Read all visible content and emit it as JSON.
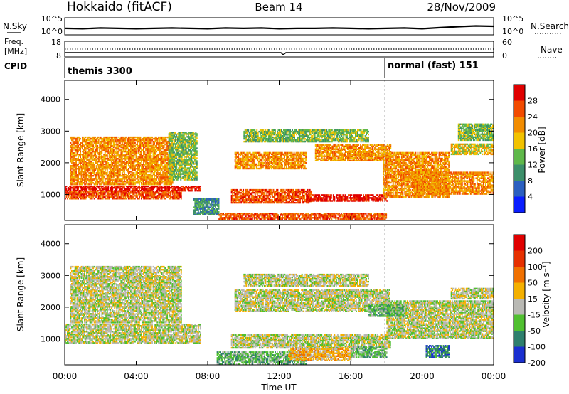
{
  "header": {
    "station_mode": "Hokkaido (fitACF)",
    "beam": "Beam 14",
    "date": "28/Nov/2009"
  },
  "top_panel": {
    "left_label": "N.Sky",
    "left_ticks": [
      "10^5",
      "10^0"
    ],
    "right_label": "N.Search",
    "right_ticks": [
      "10^5",
      "10^0"
    ]
  },
  "freq_panel": {
    "left_label": "Freq.",
    "left_unit": "[MHz]",
    "left_ticks": [
      "18",
      "8"
    ],
    "right_label": "Nave",
    "right_ticks": [
      "60",
      "0"
    ]
  },
  "cpid_panel": {
    "label": "CPID",
    "programs": [
      {
        "name": "themis 3300",
        "start_hour": 0
      },
      {
        "name": "normal (fast) 151",
        "start_hour": 18.0
      }
    ]
  },
  "chart_data": [
    {
      "type": "heatmap",
      "name": "power",
      "ylabel": "Slant Range [km]",
      "xlim": [
        0,
        24
      ],
      "ylim": [
        180,
        4600
      ],
      "yticks": [
        1000,
        2000,
        3000,
        4000
      ],
      "colorbar": {
        "label": "Power [dB]",
        "ticks": [
          "4",
          "8",
          "12",
          "16",
          "20",
          "24",
          "28"
        ],
        "colors": [
          "#0a1eff",
          "#2b5fc0",
          "#3c8f6a",
          "#5fb84a",
          "#f2c200",
          "#f28c00",
          "#f24b00",
          "#e00000"
        ]
      },
      "bands": [
        {
          "t0": 0.0,
          "t1": 7.6,
          "r0": 1100,
          "r1": 1250,
          "level": 7
        },
        {
          "t0": 0.0,
          "t1": 6.5,
          "r0": 850,
          "r1": 1100,
          "level": 6
        },
        {
          "t0": 0.3,
          "t1": 6.0,
          "r0": 1300,
          "r1": 2800,
          "level": 5
        },
        {
          "t0": 5.8,
          "t1": 7.4,
          "r0": 1450,
          "r1": 2950,
          "level": 3
        },
        {
          "t0": 7.2,
          "t1": 8.6,
          "r0": 350,
          "r1": 850,
          "level": 2
        },
        {
          "t0": 8.6,
          "t1": 18.0,
          "r0": 200,
          "r1": 420,
          "level": 6
        },
        {
          "t0": 9.3,
          "t1": 13.8,
          "r0": 720,
          "r1": 1150,
          "level": 6
        },
        {
          "t0": 13.5,
          "t1": 18.0,
          "r0": 780,
          "r1": 1000,
          "level": 7
        },
        {
          "t0": 9.5,
          "t1": 13.5,
          "r0": 1800,
          "r1": 2300,
          "level": 5
        },
        {
          "t0": 14.0,
          "t1": 18.2,
          "r0": 2050,
          "r1": 2550,
          "level": 5
        },
        {
          "t0": 10.0,
          "t1": 17.0,
          "r0": 2650,
          "r1": 3050,
          "level": 3
        },
        {
          "t0": 17.8,
          "t1": 21.5,
          "r0": 900,
          "r1": 2300,
          "level": 5
        },
        {
          "t0": 19.5,
          "t1": 24.0,
          "r0": 1000,
          "r1": 1700,
          "level": 5
        },
        {
          "t0": 21.6,
          "t1": 24.0,
          "r0": 2250,
          "r1": 2600,
          "level": 4
        },
        {
          "t0": 22.0,
          "t1": 24.0,
          "r0": 2700,
          "r1": 3200,
          "level": 3
        }
      ]
    },
    {
      "type": "heatmap",
      "name": "velocity",
      "xlabel": "Time UT",
      "ylabel": "Slant Range [km]",
      "xlim": [
        0,
        24
      ],
      "ylim": [
        180,
        4600
      ],
      "xticks": [
        "00:00",
        "04:00",
        "08:00",
        "12:00",
        "16:00",
        "20:00",
        "00:00"
      ],
      "yticks": [
        1000,
        2000,
        3000,
        4000
      ],
      "colorbar": {
        "label": "Velocity [m s⁻¹]",
        "ticks": [
          "200",
          "100",
          "50",
          "15",
          "-15",
          "-50",
          "-100",
          "-200"
        ],
        "colors": [
          "#1a2fd0",
          "#2e7f6d",
          "#50c030",
          "#b9b9b4",
          "#f4b000",
          "#f07000",
          "#e63000",
          "#e00000"
        ]
      },
      "bands": [
        {
          "t0": 0.0,
          "t1": 7.6,
          "r0": 850,
          "r1": 1450,
          "level": 3
        },
        {
          "t0": 0.3,
          "t1": 6.5,
          "r0": 1500,
          "r1": 3300,
          "level": 3
        },
        {
          "t0": 9.3,
          "t1": 18.2,
          "r0": 700,
          "r1": 1150,
          "level": 3
        },
        {
          "t0": 9.5,
          "t1": 18.2,
          "r0": 1850,
          "r1": 2550,
          "level": 3
        },
        {
          "t0": 10.0,
          "t1": 17.0,
          "r0": 2650,
          "r1": 3050,
          "level": 3
        },
        {
          "t0": 18.0,
          "t1": 24.0,
          "r0": 1000,
          "r1": 2200,
          "level": 3
        },
        {
          "t0": 21.6,
          "t1": 24.0,
          "r0": 2250,
          "r1": 2600,
          "level": 3
        },
        {
          "t0": 8.5,
          "t1": 13.5,
          "r0": 200,
          "r1": 600,
          "level": 2
        },
        {
          "t0": 12.5,
          "t1": 16.0,
          "r0": 300,
          "r1": 700,
          "level": 4
        },
        {
          "t0": 16.0,
          "t1": 18.0,
          "r0": 400,
          "r1": 750,
          "level": 2
        },
        {
          "t0": 17.0,
          "t1": 19.0,
          "r0": 1700,
          "r1": 2100,
          "level": 2
        },
        {
          "t0": 20.2,
          "t1": 21.5,
          "r0": 400,
          "r1": 800,
          "level": 1
        }
      ]
    }
  ],
  "sky_noise_curve": [
    1.9,
    1.8,
    2.0,
    1.9,
    1.8,
    1.9,
    2.0,
    1.9,
    1.8,
    2.0,
    1.9,
    2.0,
    1.8,
    1.9,
    1.9,
    2.0,
    1.9,
    1.8,
    1.9,
    2.0,
    1.8,
    2.1,
    2.4,
    2.6,
    2.5
  ]
}
